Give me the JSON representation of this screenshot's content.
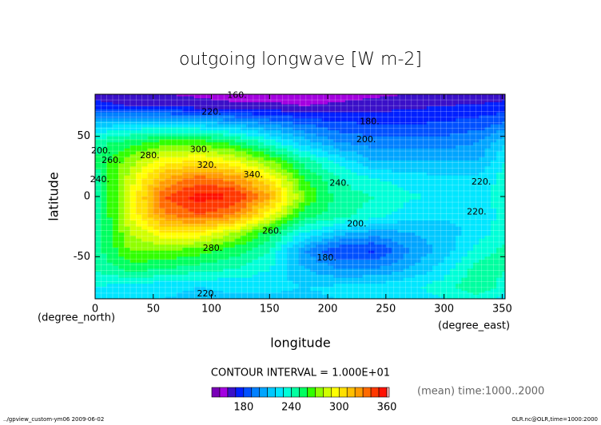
{
  "chart_data": {
    "type": "contour",
    "title": "outgoing longwave [W m-2]",
    "x_label": "longitude",
    "y_label": "latitude",
    "x_unit": "(degree_east)",
    "y_unit": "(degree_north)",
    "interval_text": "CONTOUR INTERVAL = 1.000E+01",
    "time_text": "(mean) time:1000..2000",
    "footer_left": "../gpview_custom-ym06  2009-06-02",
    "footer_right": "OLR.nc@OLR,time=1000:2000",
    "xlim": [
      0,
      352.5
    ],
    "ylim": [
      -85,
      85
    ],
    "xticks": [
      0,
      50,
      100,
      150,
      200,
      250,
      300,
      350
    ],
    "yticks": [
      -50,
      0,
      50
    ],
    "lon": [
      0,
      30,
      60,
      90,
      120,
      150,
      180,
      210,
      240,
      270,
      300,
      330,
      360
    ],
    "lat": [
      85,
      75,
      60,
      45,
      30,
      15,
      0,
      -15,
      -30,
      -45,
      -60,
      -75,
      -85
    ],
    "z": [
      [
        165,
        162,
        160,
        158,
        156,
        156,
        155,
        156,
        158,
        160,
        162,
        163,
        165
      ],
      [
        175,
        170,
        168,
        165,
        162,
        162,
        160,
        162,
        165,
        168,
        170,
        172,
        175
      ],
      [
        215,
        220,
        222,
        218,
        210,
        200,
        190,
        183,
        180,
        180,
        182,
        185,
        195
      ],
      [
        245,
        255,
        265,
        265,
        255,
        235,
        215,
        200,
        195,
        195,
        195,
        200,
        225
      ],
      [
        250,
        275,
        295,
        300,
        290,
        270,
        245,
        225,
        210,
        210,
        210,
        210,
        235
      ],
      [
        245,
        285,
        320,
        335,
        325,
        300,
        260,
        240,
        230,
        225,
        222,
        222,
        240
      ],
      [
        240,
        290,
        340,
        355,
        350,
        320,
        270,
        245,
        240,
        232,
        228,
        225,
        240
      ],
      [
        240,
        290,
        330,
        340,
        330,
        295,
        255,
        245,
        235,
        225,
        222,
        222,
        240
      ],
      [
        240,
        280,
        300,
        300,
        280,
        255,
        230,
        215,
        205,
        210,
        215,
        225,
        240
      ],
      [
        245,
        270,
        270,
        265,
        255,
        240,
        200,
        180,
        178,
        200,
        215,
        235,
        245
      ],
      [
        240,
        255,
        250,
        245,
        240,
        230,
        210,
        200,
        200,
        210,
        225,
        245,
        240
      ],
      [
        230,
        225,
        222,
        220,
        222,
        222,
        220,
        222,
        225,
        228,
        235,
        250,
        230
      ],
      [
        222,
        220,
        220,
        218,
        218,
        218,
        218,
        220,
        222,
        225,
        230,
        235,
        222
      ]
    ],
    "clim": [
      140,
      363
    ],
    "levels": [
      150,
      160,
      170,
      180,
      190,
      200,
      210,
      220,
      230,
      240,
      250,
      260,
      270,
      280,
      290,
      300,
      310,
      320,
      330,
      340,
      350,
      360
    ],
    "colors": [
      "#7a00b8",
      "#a400e0",
      "#3a10c8",
      "#0020ff",
      "#0050ff",
      "#0080ff",
      "#00a4ff",
      "#00c8ff",
      "#00e6ff",
      "#00ffd8",
      "#00ffa0",
      "#00ff60",
      "#30ff00",
      "#90ff00",
      "#d0ff00",
      "#ffff00",
      "#ffe000",
      "#ffbf00",
      "#ff9a00",
      "#ff6a00",
      "#ff3800",
      "#ff1000",
      "#ffb0b0"
    ],
    "cbar_ticks": [
      180,
      240,
      300,
      360
    ],
    "contour_labels": [
      {
        "label": "160.",
        "lon": 122,
        "lat": 84
      },
      {
        "label": "220.",
        "lon": 100,
        "lat": 70
      },
      {
        "label": "180.",
        "lon": 236,
        "lat": 62
      },
      {
        "label": "200.",
        "lon": 233,
        "lat": 47
      },
      {
        "label": "200.",
        "lon": 5,
        "lat": 38
      },
      {
        "label": "260.",
        "lon": 14,
        "lat": 30
      },
      {
        "label": "240.",
        "lon": 4,
        "lat": 14
      },
      {
        "label": "280.",
        "lon": 47,
        "lat": 34
      },
      {
        "label": "300.",
        "lon": 90,
        "lat": 39
      },
      {
        "label": "320.",
        "lon": 96,
        "lat": 26
      },
      {
        "label": "340.",
        "lon": 136,
        "lat": 18
      },
      {
        "label": "240.",
        "lon": 210,
        "lat": 11
      },
      {
        "label": "220.",
        "lon": 332,
        "lat": 12
      },
      {
        "label": "220.",
        "lon": 328,
        "lat": -13
      },
      {
        "label": "260.",
        "lon": 152,
        "lat": -29
      },
      {
        "label": "280.",
        "lon": 101,
        "lat": -43
      },
      {
        "label": "200.",
        "lon": 225,
        "lat": -23
      },
      {
        "label": "180.",
        "lon": 199,
        "lat": -51
      },
      {
        "label": "220.",
        "lon": 96,
        "lat": -81
      }
    ]
  }
}
